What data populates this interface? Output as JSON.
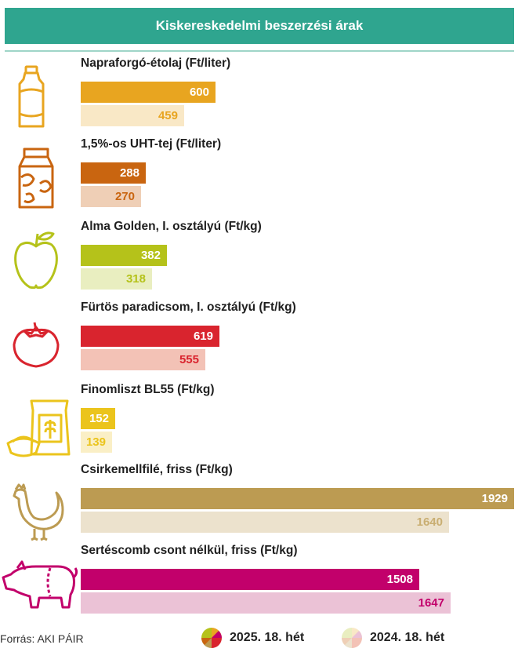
{
  "header": {
    "title": "Kiskereskedelmi beszerzési árak"
  },
  "chart_data": {
    "type": "bar",
    "orientation": "horizontal",
    "title": "Kiskereskedelmi beszerzési árak",
    "categories": [
      "Napraforgó-étolaj (Ft/liter)",
      "1,5%-os UHT-tej (Ft/liter)",
      "Alma Golden, I. osztályú (Ft/kg)",
      "Fürtös paradicsom, I. osztályú (Ft/kg)",
      "Finomliszt BL55 (Ft/kg)",
      "Csirkemellfilé, friss (Ft/kg)",
      "Sertéscomb csont nélkül, friss (Ft/kg)"
    ],
    "series": [
      {
        "name": "2025. 18. hét",
        "values": [
          600,
          288,
          382,
          619,
          152,
          1929,
          1508
        ]
      },
      {
        "name": "2024. 18. hét",
        "values": [
          459,
          270,
          318,
          555,
          139,
          1640,
          1647
        ]
      }
    ],
    "xlim": [
      0,
      1929
    ],
    "grid": false,
    "legend": "bottom"
  },
  "colors": {
    "header": "#2fa58f",
    "current": [
      "#e8a520",
      "#c96510",
      "#b5c21a",
      "#d9242e",
      "#ebc41c",
      "#bc9b52",
      "#c2006b"
    ],
    "previous": [
      "#f9e8c6",
      "#efcfb6",
      "#e9eec0",
      "#f3c2b6",
      "#faefc6",
      "#ece2cd",
      "#ebc2d6"
    ],
    "prev_text": [
      "#e8a520",
      "#c96510",
      "#b5c21a",
      "#d9242e",
      "#ebc41c",
      "#c9ae72",
      "#c2006b"
    ]
  },
  "icons": [
    "oil-bottle-icon",
    "milk-carton-icon",
    "apple-icon",
    "tomato-icon",
    "flour-icon",
    "chicken-icon",
    "pig-icon"
  ],
  "footer": {
    "source": "Forrás: AKI PÁIR",
    "legend_current": "2025. 18. hét",
    "legend_previous": "2024. 18. hét"
  }
}
